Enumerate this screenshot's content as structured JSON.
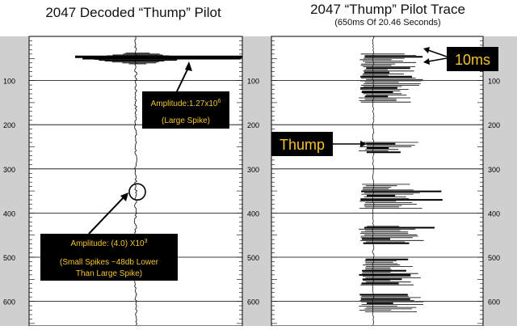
{
  "left_title": "2047 Decoded “Thump” Pilot",
  "right_title": "2047 “Thump” Pilot Trace",
  "right_subtitle": "(650ms Of 20.46 Seconds)",
  "colors": {
    "label_box": "#000000",
    "label_text": "#f4c430",
    "ruler": "#cfcfcf",
    "trace": "#000000"
  },
  "annotations": {
    "amplitude_large": "Amplitude:1.27x10",
    "amplitude_large_exp": "6",
    "large_spike": "(Large Spike)",
    "amplitude_small": "Amplitude: (4.0) X10",
    "amplitude_small_exp": "3",
    "small_spikes_1": "(Small Spikes ~48db Lower",
    "small_spikes_2": "Than Large Spike)",
    "thump": "Thump",
    "ten_ms": "10ms"
  },
  "chart_data": [
    {
      "type": "line",
      "title": "2047 Decoded “Thump” Pilot",
      "ylabel": "",
      "y_ticks": [
        100,
        200,
        300,
        400,
        500,
        600
      ],
      "ylim": [
        0,
        650
      ],
      "y_inverted": true,
      "spike": {
        "time_ms": 50,
        "amplitude": "1.27x10^6"
      },
      "small_spike": {
        "time_ms": 352,
        "amplitude": "(4.0) X10^3"
      }
    },
    {
      "type": "line",
      "title": "2047 “Thump” Pilot Trace",
      "subtitle": "(650ms Of 20.46 Seconds)",
      "y_ticks": [
        100,
        200,
        300,
        400,
        500,
        600
      ],
      "ylim": [
        0,
        650
      ],
      "y_inverted": true,
      "spike_groups_ms": [
        [
          40,
          150
        ],
        [
          240,
          265
        ],
        [
          335,
          390
        ],
        [
          430,
          470
        ],
        [
          505,
          565
        ],
        [
          585,
          625
        ]
      ]
    }
  ]
}
